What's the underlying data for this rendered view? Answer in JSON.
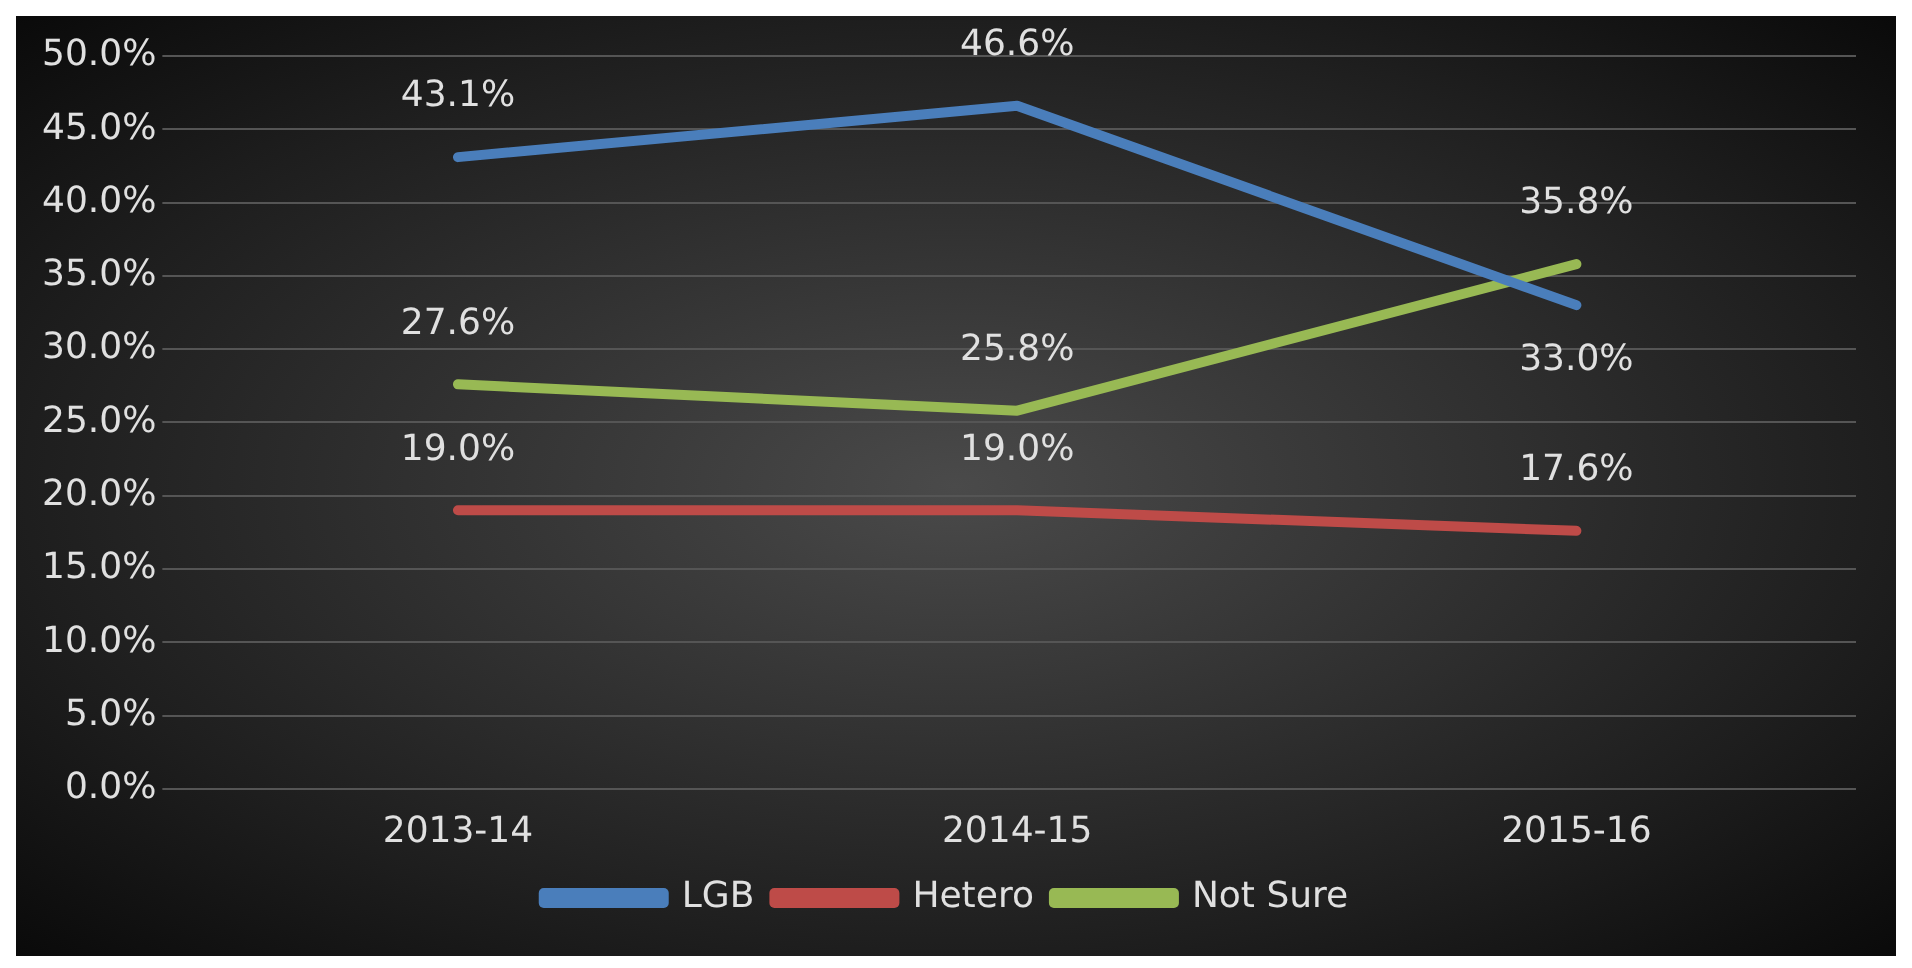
{
  "chart_data": {
    "type": "line",
    "categories": [
      "2013-14",
      "2014-15",
      "2015-16"
    ],
    "series": [
      {
        "name": "LGB",
        "color": "#4a7ebb",
        "values": [
          43.1,
          46.6,
          33.0
        ],
        "value_labels": [
          "43.1%",
          "46.6%",
          "33.0%"
        ]
      },
      {
        "name": "Hetero",
        "color": "#be4b48",
        "values": [
          19.0,
          19.0,
          17.6
        ],
        "value_labels": [
          "19.0%",
          "19.0%",
          "17.6%"
        ]
      },
      {
        "name": "Not Sure",
        "color": "#98b954",
        "values": [
          27.6,
          25.8,
          35.8
        ],
        "value_labels": [
          "27.6%",
          "25.8%",
          "35.8%"
        ]
      }
    ],
    "ylim": [
      0,
      50
    ],
    "yticks": [
      {
        "value": 0,
        "label": "0.0%"
      },
      {
        "value": 5,
        "label": "5.0%"
      },
      {
        "value": 10,
        "label": "10.0%"
      },
      {
        "value": 15,
        "label": "15.0%"
      },
      {
        "value": 20,
        "label": "20.0%"
      },
      {
        "value": 25,
        "label": "25.0%"
      },
      {
        "value": 30,
        "label": "30.0%"
      },
      {
        "value": 35,
        "label": "35.0%"
      },
      {
        "value": 40,
        "label": "40.0%"
      },
      {
        "value": 45,
        "label": "45.0%"
      },
      {
        "value": 50,
        "label": "50.0%"
      }
    ],
    "grid": "y",
    "legend": "bottom",
    "marker": "none",
    "line_style": "solid"
  }
}
